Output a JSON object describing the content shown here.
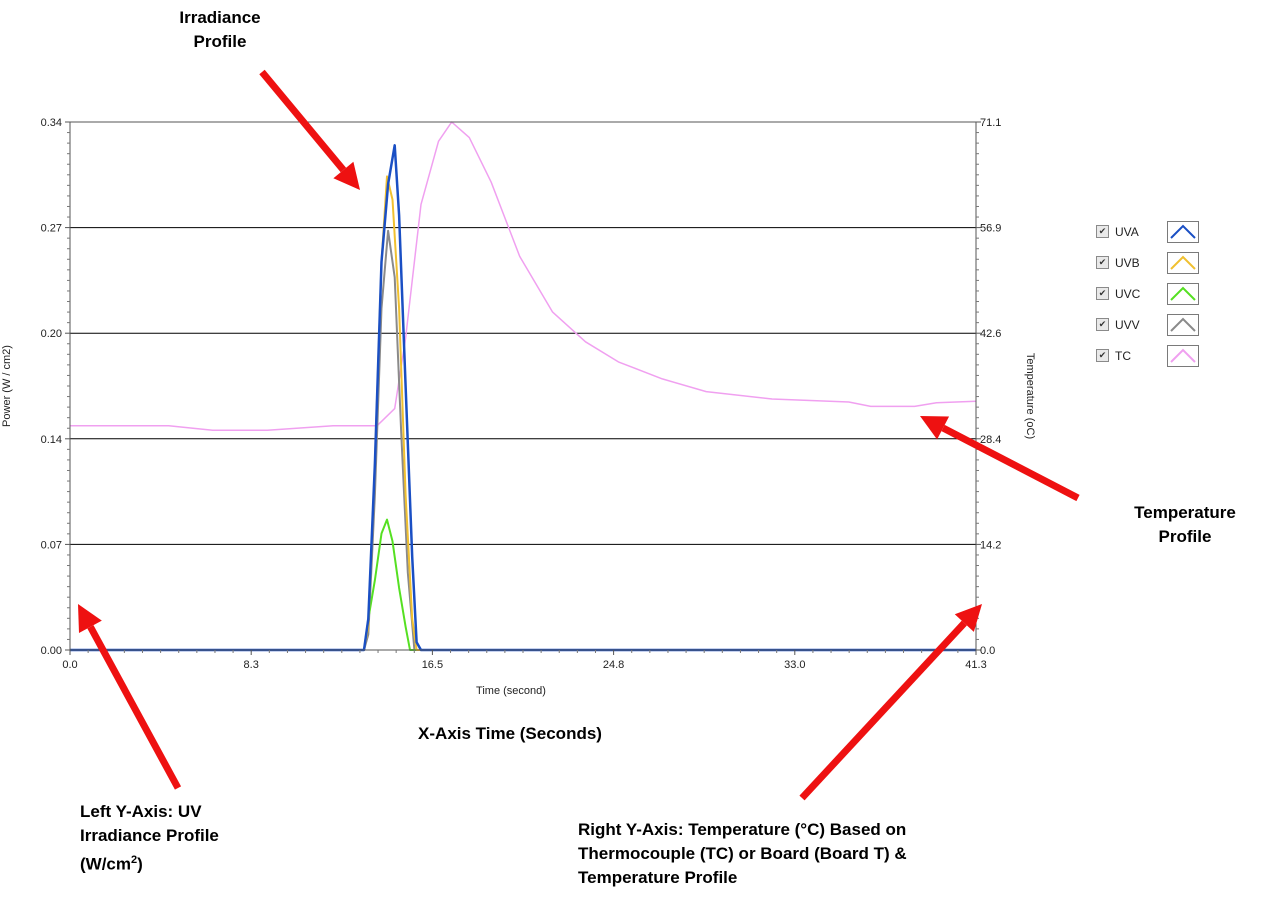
{
  "chart_data": {
    "type": "line",
    "xlabel": "Time (second)",
    "ylabel_left": "Power (W / cm2)",
    "ylabel_right": "Temperature (oC)",
    "xlim": [
      0.0,
      41.3
    ],
    "ylim_left": [
      0.0,
      0.34
    ],
    "ylim_right": [
      0.0,
      71.1
    ],
    "x_ticks": [
      "0.0",
      "8.3",
      "16.5",
      "24.8",
      "33.0",
      "41.3"
    ],
    "y_ticks_left": [
      "0.00",
      "0.07",
      "0.14",
      "0.20",
      "0.27",
      "0.34"
    ],
    "y_ticks_right": [
      "0.0",
      "14.2",
      "28.4",
      "42.6",
      "56.9",
      "71.1"
    ],
    "grid": "horizontal",
    "series": [
      {
        "name": "UVA",
        "color": "#1a4fc4",
        "axis": "left",
        "points": [
          [
            0,
            0
          ],
          [
            13.4,
            0
          ],
          [
            13.6,
            0.02
          ],
          [
            13.9,
            0.12
          ],
          [
            14.2,
            0.25
          ],
          [
            14.5,
            0.3
          ],
          [
            14.8,
            0.325
          ],
          [
            15.0,
            0.28
          ],
          [
            15.3,
            0.17
          ],
          [
            15.6,
            0.06
          ],
          [
            15.8,
            0.005
          ],
          [
            16.0,
            0
          ],
          [
            41.3,
            0
          ]
        ]
      },
      {
        "name": "UVB",
        "color": "#f0c030",
        "axis": "left",
        "points": [
          [
            0,
            0
          ],
          [
            13.4,
            0
          ],
          [
            13.6,
            0.015
          ],
          [
            13.9,
            0.12
          ],
          [
            14.2,
            0.25
          ],
          [
            14.45,
            0.305
          ],
          [
            14.7,
            0.29
          ],
          [
            15.0,
            0.22
          ],
          [
            15.3,
            0.1
          ],
          [
            15.6,
            0.02
          ],
          [
            15.8,
            0
          ],
          [
            41.3,
            0
          ]
        ]
      },
      {
        "name": "UVC",
        "color": "#55e022",
        "axis": "left",
        "points": [
          [
            0,
            0
          ],
          [
            13.4,
            0
          ],
          [
            13.6,
            0.02
          ],
          [
            13.9,
            0.045
          ],
          [
            14.2,
            0.075
          ],
          [
            14.45,
            0.084
          ],
          [
            14.7,
            0.07
          ],
          [
            15.0,
            0.04
          ],
          [
            15.3,
            0.015
          ],
          [
            15.5,
            0
          ],
          [
            41.3,
            0
          ]
        ]
      },
      {
        "name": "UVV",
        "color": "#8a8a8a",
        "axis": "left",
        "points": [
          [
            0,
            0
          ],
          [
            13.4,
            0
          ],
          [
            13.6,
            0.01
          ],
          [
            13.9,
            0.1
          ],
          [
            14.2,
            0.22
          ],
          [
            14.5,
            0.27
          ],
          [
            14.8,
            0.24
          ],
          [
            15.1,
            0.14
          ],
          [
            15.4,
            0.05
          ],
          [
            15.7,
            0
          ],
          [
            41.3,
            0
          ]
        ]
      },
      {
        "name": "TC",
        "color": "#f0a0f0",
        "axis": "right",
        "points": [
          [
            0,
            30.2
          ],
          [
            4.5,
            30.2
          ],
          [
            6.5,
            29.6
          ],
          [
            9.0,
            29.6
          ],
          [
            12.0,
            30.2
          ],
          [
            14.0,
            30.2
          ],
          [
            14.8,
            32.5
          ],
          [
            15.3,
            42.0
          ],
          [
            16.0,
            60.0
          ],
          [
            16.8,
            68.5
          ],
          [
            17.4,
            71.1
          ],
          [
            18.2,
            69.0
          ],
          [
            19.2,
            63.0
          ],
          [
            20.5,
            53.0
          ],
          [
            22.0,
            45.5
          ],
          [
            23.5,
            41.5
          ],
          [
            25.0,
            38.8
          ],
          [
            27.0,
            36.5
          ],
          [
            29.0,
            34.8
          ],
          [
            32.0,
            33.8
          ],
          [
            35.5,
            33.4
          ],
          [
            36.5,
            32.8
          ],
          [
            38.5,
            32.8
          ],
          [
            39.5,
            33.3
          ],
          [
            41.3,
            33.5
          ]
        ]
      }
    ],
    "legend": "right"
  },
  "legend": {
    "items": [
      {
        "label": "UVA",
        "color": "#1a4fc4"
      },
      {
        "label": "UVB",
        "color": "#f0c030"
      },
      {
        "label": "UVC",
        "color": "#55e022"
      },
      {
        "label": "UVV",
        "color": "#8a8a8a"
      },
      {
        "label": "TC",
        "color": "#f0a0f0"
      }
    ]
  },
  "annotations": {
    "irradiance_profile": [
      "Irradiance",
      "Profile"
    ],
    "temperature_profile": [
      "Temperature",
      "Profile"
    ],
    "x_axis": "X-Axis Time (Seconds)",
    "left_y_axis": [
      "Left Y-Axis: UV",
      "Irradiance Profile",
      "(W/cm",
      "2",
      ")"
    ],
    "right_y_axis": [
      "Right Y-Axis:  Temperature (°C) Based on",
      "Thermocouple (TC) or Board (Board T) &",
      "Temperature Profile"
    ],
    "arrow_color": "#ee1111"
  }
}
